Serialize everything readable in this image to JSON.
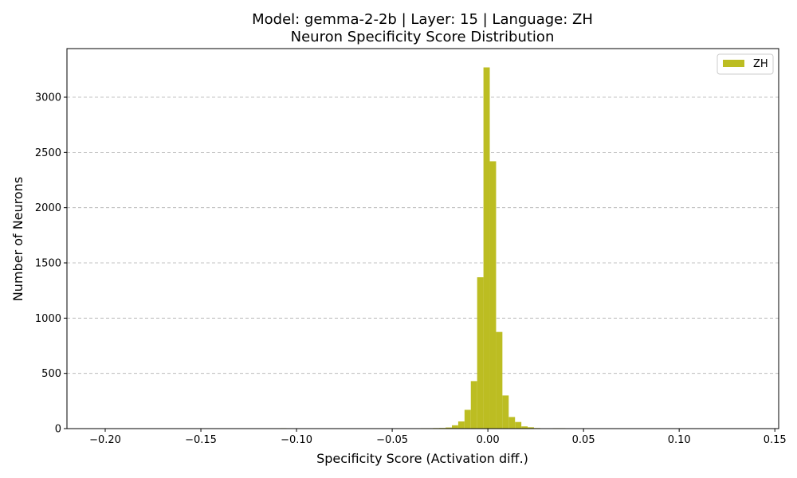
{
  "chart_data": {
    "type": "bar",
    "title_line1": "Model: gemma-2-2b | Layer: 15 | Language: ZH",
    "title_line2": "Neuron Specificity Score Distribution",
    "xlabel": "Specificity Score (Activation diff.)",
    "ylabel": "Number of Neurons",
    "xlim": [
      -0.22,
      0.152
    ],
    "ylim": [
      0,
      3440
    ],
    "grid": "y-dashed",
    "legend_position": "top-right",
    "series": [
      {
        "name": "ZH",
        "color": "#bcbd22",
        "bins": [
          {
            "x0": -0.1085,
            "x1": -0.1052,
            "value": 4
          },
          {
            "x0": -0.0485,
            "x1": -0.0452,
            "value": 3
          },
          {
            "x0": -0.0419,
            "x1": -0.0386,
            "value": 3
          },
          {
            "x0": -0.0386,
            "x1": -0.0353,
            "value": 3
          },
          {
            "x0": -0.0353,
            "x1": -0.032,
            "value": 4
          },
          {
            "x0": -0.032,
            "x1": -0.0287,
            "value": 4
          },
          {
            "x0": -0.0287,
            "x1": -0.0254,
            "value": 5
          },
          {
            "x0": -0.0254,
            "x1": -0.0221,
            "value": 6
          },
          {
            "x0": -0.0221,
            "x1": -0.0188,
            "value": 10
          },
          {
            "x0": -0.0188,
            "x1": -0.0155,
            "value": 30
          },
          {
            "x0": -0.0155,
            "x1": -0.0122,
            "value": 65
          },
          {
            "x0": -0.0122,
            "x1": -0.0089,
            "value": 170
          },
          {
            "x0": -0.0089,
            "x1": -0.0056,
            "value": 430
          },
          {
            "x0": -0.0056,
            "x1": -0.0023,
            "value": 1370
          },
          {
            "x0": -0.0023,
            "x1": 0.001,
            "value": 3270
          },
          {
            "x0": 0.001,
            "x1": 0.0043,
            "value": 2420
          },
          {
            "x0": 0.0043,
            "x1": 0.0076,
            "value": 875
          },
          {
            "x0": 0.0076,
            "x1": 0.0109,
            "value": 300
          },
          {
            "x0": 0.0109,
            "x1": 0.0142,
            "value": 105
          },
          {
            "x0": 0.0142,
            "x1": 0.0175,
            "value": 60
          },
          {
            "x0": 0.0175,
            "x1": 0.0208,
            "value": 20
          },
          {
            "x0": 0.0208,
            "x1": 0.0241,
            "value": 12
          },
          {
            "x0": 0.0241,
            "x1": 0.0274,
            "value": 5
          },
          {
            "x0": 0.0274,
            "x1": 0.0307,
            "value": 2
          },
          {
            "x0": 0.034,
            "x1": 0.0373,
            "value": 4
          },
          {
            "x0": 0.0373,
            "x1": 0.0406,
            "value": 4
          }
        ]
      }
    ],
    "x_ticks": [
      {
        "value": -0.2,
        "label": "−0.20"
      },
      {
        "value": -0.15,
        "label": "−0.15"
      },
      {
        "value": -0.1,
        "label": "−0.10"
      },
      {
        "value": -0.05,
        "label": "−0.05"
      },
      {
        "value": 0.0,
        "label": "0.00"
      },
      {
        "value": 0.05,
        "label": "0.05"
      },
      {
        "value": 0.1,
        "label": "0.10"
      },
      {
        "value": 0.15,
        "label": "0.15"
      }
    ],
    "y_ticks": [
      {
        "value": 0,
        "label": "0"
      },
      {
        "value": 500,
        "label": "500"
      },
      {
        "value": 1000,
        "label": "1000"
      },
      {
        "value": 1500,
        "label": "1500"
      },
      {
        "value": 2000,
        "label": "2000"
      },
      {
        "value": 2500,
        "label": "2500"
      },
      {
        "value": 3000,
        "label": "3000"
      }
    ]
  }
}
